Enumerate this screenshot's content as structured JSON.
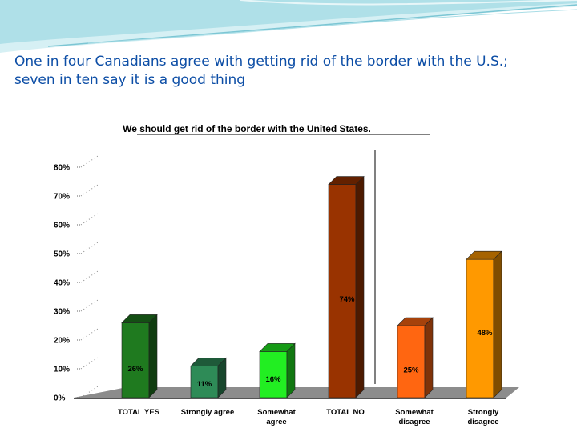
{
  "slide": {
    "title_line1": "One in four Canadians agree with getting rid of the border with the U.S.;",
    "title_line2": "seven in ten say it is a good thing"
  },
  "colors": {
    "title_text": "#0d4ea6",
    "decor_teal": "#8fd3df",
    "decor_light": "#d6f0f4"
  },
  "chart_data": {
    "type": "bar",
    "title": "We should get rid of the border with the United States.",
    "categories": [
      "TOTAL YES",
      "Strongly agree",
      "Somewhat agree",
      "TOTAL NO",
      "Somewhat disagree",
      "Strongly disagree"
    ],
    "category_lines": [
      [
        "TOTAL YES"
      ],
      [
        "Strongly agree"
      ],
      [
        "Somewhat",
        "agree"
      ],
      [
        "TOTAL NO"
      ],
      [
        "Somewhat",
        "disagree"
      ],
      [
        "Strongly",
        "disagree"
      ]
    ],
    "values": [
      26,
      11,
      16,
      74,
      25,
      48
    ],
    "data_labels": [
      "26%",
      "11%",
      "16%",
      "74%",
      "25%",
      "48%"
    ],
    "colors": [
      "#1f7a1f",
      "#2e8b57",
      "#22ee22",
      "#993300",
      "#ff6611",
      "#ff9900"
    ],
    "ylim": [
      0,
      80
    ],
    "yticks": [
      "0%",
      "10%",
      "20%",
      "30%",
      "40%",
      "50%",
      "60%",
      "70%",
      "80%"
    ],
    "style": "3d",
    "grid": false,
    "divider_after_category": 3
  }
}
